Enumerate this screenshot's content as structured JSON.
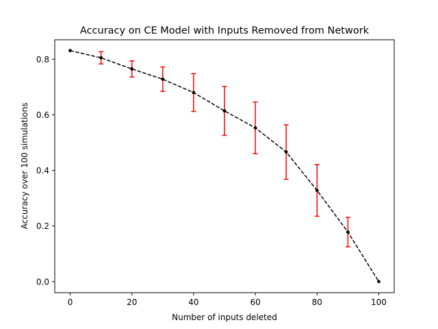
{
  "chart_data": {
    "type": "line",
    "title": "Accuracy on CE Model with Inputs Removed from Network",
    "xlabel": "Number of inputs deleted",
    "ylabel": "Accuracy over 100 simulations",
    "xlim": [
      -5,
      105
    ],
    "ylim": [
      -0.04,
      0.87
    ],
    "xticks": [
      0,
      20,
      40,
      60,
      80,
      100
    ],
    "yticks": [
      0.0,
      0.2,
      0.4,
      0.6,
      0.8
    ],
    "xtick_labels": [
      "0",
      "20",
      "40",
      "60",
      "80",
      "100"
    ],
    "ytick_labels": [
      "0.0",
      "0.2",
      "0.4",
      "0.6",
      "0.8"
    ],
    "grid": false,
    "legend": "none",
    "series": [
      {
        "x": [
          0,
          10,
          20,
          30,
          40,
          50,
          60,
          70,
          80,
          90,
          100
        ],
        "y": [
          0.831,
          0.805,
          0.765,
          0.728,
          0.68,
          0.614,
          0.553,
          0.466,
          0.328,
          0.178,
          0.0
        ],
        "yerr": [
          0.0,
          0.022,
          0.029,
          0.044,
          0.068,
          0.088,
          0.093,
          0.098,
          0.093,
          0.053,
          0.0
        ],
        "line_color": "#000000",
        "line_style": "dashed",
        "marker": "dot",
        "errorbar_color": "#ff0000"
      }
    ]
  }
}
